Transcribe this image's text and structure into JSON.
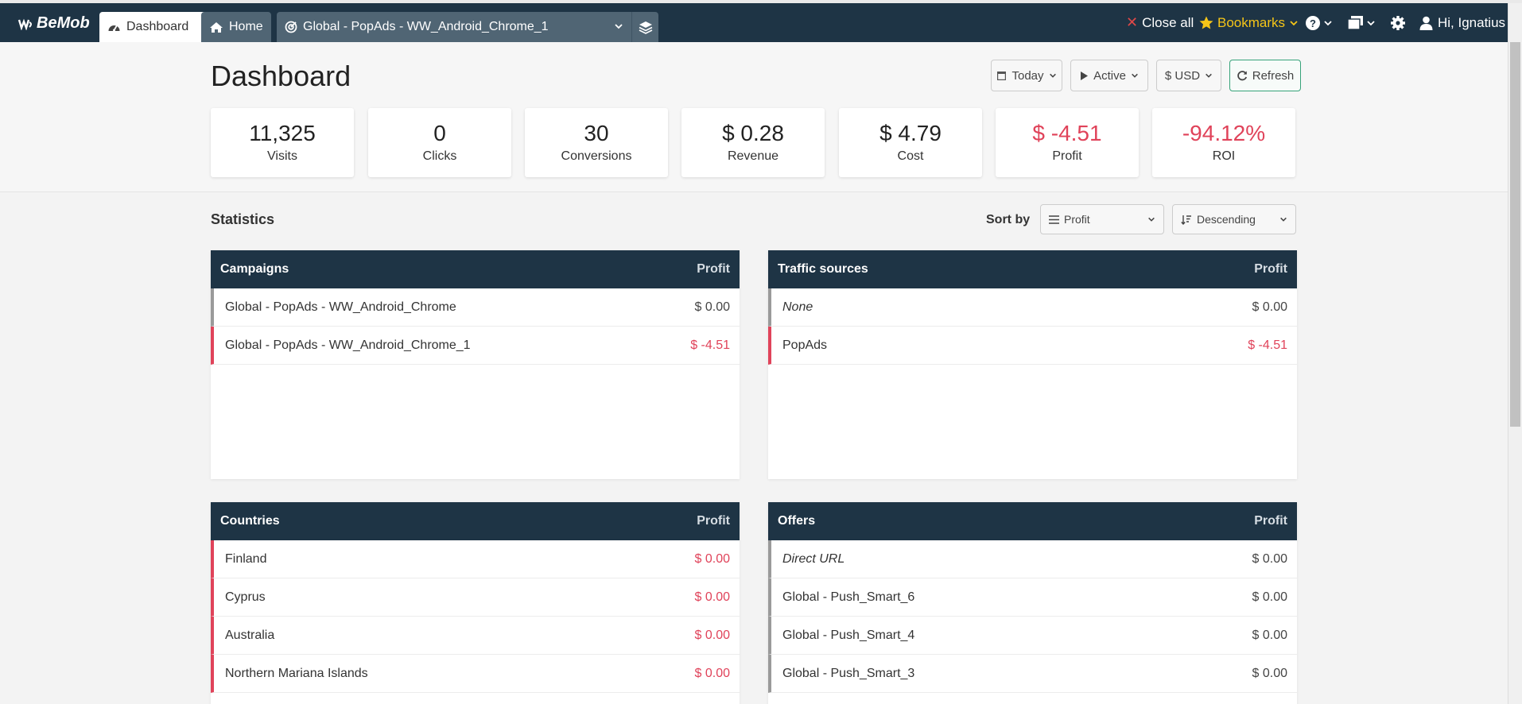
{
  "app": {
    "logo": "BeMob"
  },
  "tabs": {
    "dashboard": "Dashboard",
    "home": "Home",
    "campaign": "Global - PopAds - WW_Android_Chrome_1"
  },
  "topbar": {
    "close_all": "Close all",
    "bookmarks": "Bookmarks",
    "user": "Hi, Ignatius"
  },
  "page": {
    "title": "Dashboard"
  },
  "controls": {
    "today": "Today",
    "active": "Active",
    "currency": "$ USD",
    "refresh": "Refresh"
  },
  "metrics": [
    {
      "value": "11,325",
      "label": "Visits"
    },
    {
      "value": "0",
      "label": "Clicks"
    },
    {
      "value": "30",
      "label": "Conversions"
    },
    {
      "value": "$ 0.28",
      "label": "Revenue"
    },
    {
      "value": "$ 4.79",
      "label": "Cost"
    },
    {
      "value": "$ -4.51",
      "label": "Profit"
    },
    {
      "value": "-94.12%",
      "label": "ROI"
    }
  ],
  "statistics": {
    "title": "Statistics",
    "sort_by_label": "Sort by",
    "sort_field": "Profit",
    "sort_order": "Descending"
  },
  "panels": {
    "campaigns": {
      "title": "Campaigns",
      "column": "Profit",
      "rows": [
        {
          "name": "Global - PopAds - WW_Android_Chrome",
          "value": "$ 0.00"
        },
        {
          "name": "Global - PopAds - WW_Android_Chrome_1",
          "value": "$ -4.51"
        }
      ]
    },
    "traffic_sources": {
      "title": "Traffic sources",
      "column": "Profit",
      "rows": [
        {
          "name": "None",
          "value": "$ 0.00"
        },
        {
          "name": "PopAds",
          "value": "$ -4.51"
        }
      ]
    },
    "countries": {
      "title": "Countries",
      "column": "Profit",
      "rows": [
        {
          "name": "Finland",
          "value": "$ 0.00"
        },
        {
          "name": "Cyprus",
          "value": "$ 0.00"
        },
        {
          "name": "Australia",
          "value": "$ 0.00"
        },
        {
          "name": "Northern Mariana Islands",
          "value": "$ 0.00"
        }
      ]
    },
    "offers": {
      "title": "Offers",
      "column": "Profit",
      "rows": [
        {
          "name": "Direct URL",
          "value": "$ 0.00"
        },
        {
          "name": "Global - Push_Smart_6",
          "value": "$ 0.00"
        },
        {
          "name": "Global - Push_Smart_4",
          "value": "$ 0.00"
        },
        {
          "name": "Global - Push_Smart_3",
          "value": "$ 0.00"
        }
      ]
    }
  },
  "colors": {
    "navbar": "#1e3445",
    "negative": "#e0435a",
    "bookmarks": "#f5c518",
    "refresh_border": "#37a37a"
  }
}
